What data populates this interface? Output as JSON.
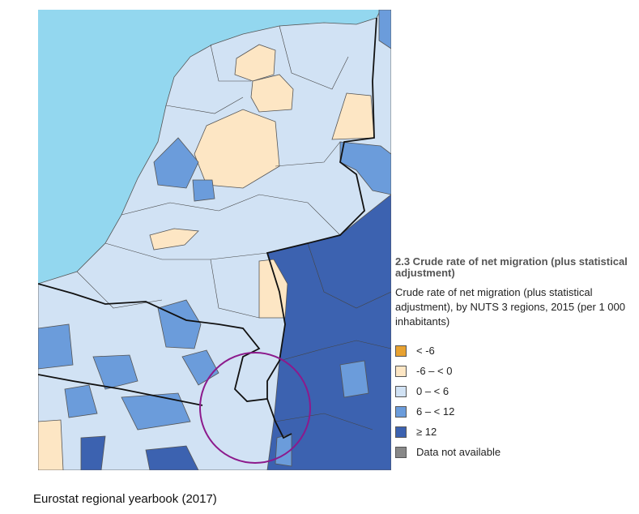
{
  "legend": {
    "title": "2.3 Crude rate of net migration (plus statistical adjustment)",
    "subtitle": "Crude rate of net migration (plus statistical adjustment), by NUTS 3 regions, 2015 (per 1 000 inhabitants)",
    "items": [
      {
        "label": "< -6",
        "color": "#e8a231"
      },
      {
        "label": "-6 – < 0",
        "color": "#fde6c4"
      },
      {
        "label": "0 – < 6",
        "color": "#d1e2f4"
      },
      {
        "label": "6 – < 12",
        "color": "#6b9cdb"
      },
      {
        "label": "≥ 12",
        "color": "#3c62b0"
      },
      {
        "label": "Data not available",
        "color": "#888888"
      }
    ]
  },
  "caption": "Eurostat regional yearbook (2017)"
}
